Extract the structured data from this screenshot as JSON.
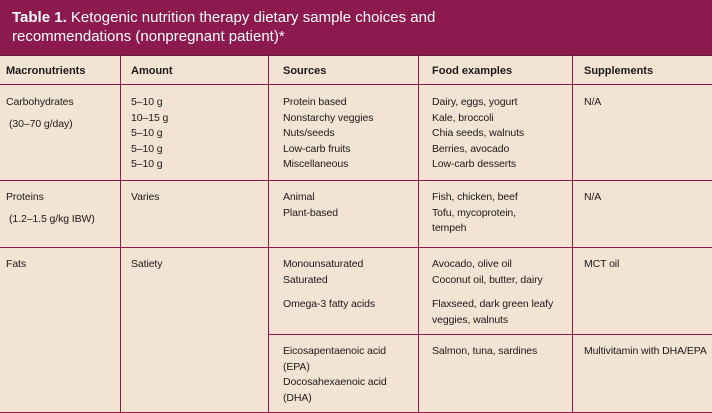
{
  "title": {
    "label": "Table 1.",
    "text_line1": "Ketogenic nutrition therapy dietary sample choices and",
    "text_line2": "recommendations (nonpregnant patient)*"
  },
  "headers": [
    "Macronutrients",
    "Amount",
    "Sources",
    "Food examples",
    "Supplements"
  ],
  "rows": {
    "carbs": {
      "macro": "Carbohydrates",
      "macro_note": "(30–70 g/day)",
      "amounts": [
        "5–10 g",
        "10–15 g",
        "5–10 g",
        "5–10 g",
        "5–10 g"
      ],
      "sources": [
        "Protein based",
        "Nonstarchy veggies",
        "Nuts/seeds",
        "Low-carb fruits",
        "Miscellaneous"
      ],
      "foods": [
        "Dairy, eggs, yogurt",
        "Kale, broccoli",
        "Chia seeds, walnuts",
        "Berries, avocado",
        "Low-carb desserts"
      ],
      "supplements": "N/A"
    },
    "proteins": {
      "macro": "Proteins",
      "macro_note": "(1.2–1.5 g/kg IBW)",
      "amount": "Varies",
      "sources": [
        "Animal",
        "Plant-based"
      ],
      "foods": [
        "Fish, chicken, beef",
        "Tofu, mycoprotein,",
        "tempeh"
      ],
      "supplements": "N/A"
    },
    "fats": {
      "macro": "Fats",
      "amount": "Satiety",
      "sources_a": [
        "Monounsaturated",
        "Saturated"
      ],
      "sources_b": "Omega-3 fatty acids",
      "foods_a": [
        "Avocado, olive oil",
        "Coconut oil, butter, dairy"
      ],
      "foods_b": [
        "Flaxseed, dark green leafy",
        "veggies, walnuts"
      ],
      "supplements": "MCT oil",
      "sub_sources": [
        "Eicosapentaenoic acid",
        "(EPA)",
        "Docosahexaenoic acid",
        "(DHA)"
      ],
      "sub_foods": "Salmon, tuna, sardines",
      "sub_supplements": "Multivitamin with DHA/EPA"
    }
  },
  "colors": {
    "title_bg": "#8c1a4f",
    "table_bg": "#f3e3d3",
    "rule": "#8c1a4f"
  }
}
